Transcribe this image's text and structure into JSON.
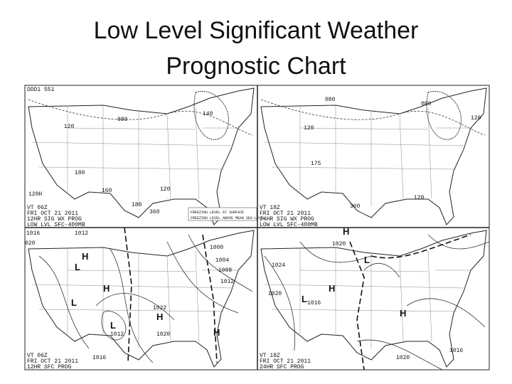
{
  "title": "Low Level Significant Weather Prognostic Chart",
  "panels": [
    {
      "caption": [
        "VT 06Z",
        "FRI OCT 21 2011",
        "12HR SIG WX PROG",
        "LOW LVL SFC-400MB"
      ],
      "labels": [
        "DDD1 551",
        "120",
        "080",
        "140",
        "180",
        "160",
        "120",
        "180",
        "360",
        "120H"
      ]
    },
    {
      "caption": [
        "VT 18Z",
        "FRI OCT 21 2011",
        "24HR SIG WX PROG",
        "LOW LVL SFC-400MB"
      ],
      "labels": [
        "080",
        "120",
        "080",
        "120",
        "175",
        "360",
        "120"
      ]
    },
    {
      "caption": [
        "VT 06Z",
        "FRI OCT 21 2011",
        "12HR SFC PROG"
      ],
      "labels": [
        "1016",
        "020",
        "1012",
        "H",
        "L",
        "L",
        "H",
        "1000",
        "1004",
        "1008",
        "1012",
        "1022",
        "H",
        "L",
        "1012",
        "1016",
        "1020",
        "H"
      ]
    },
    {
      "caption": [
        "VT 18Z",
        "FRI OCT 21 2011",
        "24HR SFC PROG"
      ],
      "labels": [
        "H",
        "1020",
        "1024",
        "1020",
        "H",
        "L",
        "1016",
        "L",
        "H",
        "1016",
        "1020"
      ]
    }
  ],
  "legend": [
    "FREEZING LEVEL AT SURFACE",
    "FREEZING LEVEL ABOVE MEAN SEA LEVEL"
  ]
}
